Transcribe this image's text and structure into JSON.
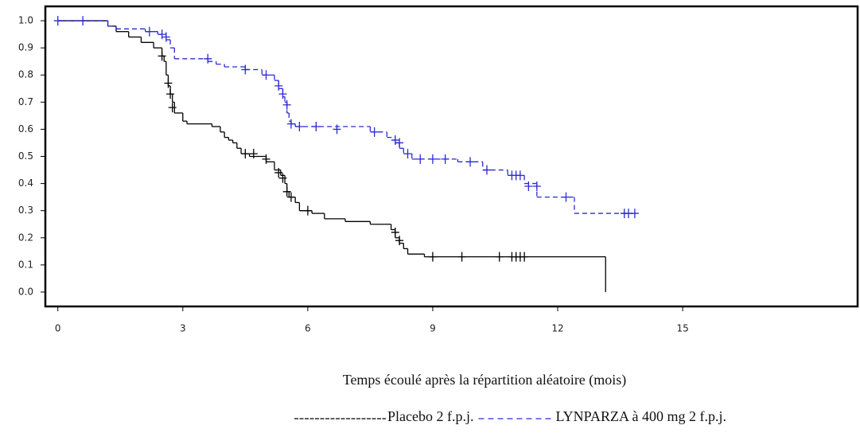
{
  "chart_data": {
    "type": "km",
    "x_label": "Temps écoulé après la répartition aléatoire (mois)",
    "xlim": [
      -0.3,
      19.2
    ],
    "ylim": [
      -0.053,
      1.053
    ],
    "xticks": [
      0,
      3,
      6,
      9,
      12,
      15
    ],
    "yticks": [
      {
        "value": 0,
        "label": "0.0"
      },
      0.1,
      0.2,
      0.3,
      0.4,
      0.5,
      0.6,
      0.7,
      0.8,
      0.9,
      {
        "value": 1,
        "label": "1.0"
      }
    ],
    "series": [
      {
        "name": "Placebo 2 f.p.j.",
        "color": "#000000",
        "dashed": false,
        "x": [
          0,
          1.2,
          1.4,
          1.7,
          2.0,
          2.3,
          2.5,
          2.55,
          2.6,
          2.65,
          2.7,
          2.75,
          2.8,
          3.0,
          3.1,
          3.7,
          3.9,
          4.0,
          4.1,
          4.2,
          4.3,
          4.4,
          4.6,
          5.0,
          5.2,
          5.35,
          5.45,
          5.5,
          5.55,
          5.7,
          5.8,
          6.1,
          6.4,
          6.9,
          7.5,
          8.0,
          8.1,
          8.2,
          8.3,
          8.4,
          8.8,
          13.15
        ],
        "values": [
          1.0,
          0.98,
          0.96,
          0.94,
          0.92,
          0.9,
          0.87,
          0.85,
          0.8,
          0.76,
          0.73,
          0.7,
          0.66,
          0.63,
          0.62,
          0.61,
          0.59,
          0.57,
          0.56,
          0.55,
          0.53,
          0.51,
          0.5,
          0.48,
          0.45,
          0.43,
          0.4,
          0.37,
          0.35,
          0.33,
          0.3,
          0.29,
          0.27,
          0.26,
          0.25,
          0.23,
          0.2,
          0.18,
          0.16,
          0.14,
          0.13,
          0
        ],
        "censor_x": [
          2.5,
          2.65,
          2.7,
          2.75,
          4.5,
          4.7,
          5.0,
          5.3,
          5.4,
          5.5,
          5.6,
          6.0,
          8.1,
          8.2,
          9.0,
          9.7,
          10.6,
          10.9,
          11.0,
          11.1,
          11.2
        ],
        "censor_values": [
          0.87,
          0.77,
          0.73,
          0.68,
          0.51,
          0.51,
          0.49,
          0.44,
          0.42,
          0.37,
          0.35,
          0.3,
          0.22,
          0.19,
          0.13,
          0.13,
          0.13,
          0.13,
          0.13,
          0.13,
          0.13
        ]
      },
      {
        "name": "LYNPARZA à 400 mg 2 f.p.j.",
        "color": "#2a2ad0",
        "dashed": true,
        "x": [
          0,
          1.2,
          1.4,
          2.1,
          2.4,
          2.6,
          2.7,
          2.8,
          3.6,
          3.8,
          4.0,
          4.5,
          4.9,
          5.2,
          5.3,
          5.4,
          5.45,
          5.5,
          5.55,
          5.6,
          5.7,
          7.5,
          7.9,
          8.1,
          8.2,
          8.3,
          8.5,
          9.6,
          10.2,
          10.8,
          11.2,
          11.5,
          12.4,
          13.8
        ],
        "values": [
          1.0,
          0.98,
          0.97,
          0.96,
          0.95,
          0.93,
          0.9,
          0.86,
          0.85,
          0.84,
          0.83,
          0.82,
          0.8,
          0.78,
          0.75,
          0.72,
          0.7,
          0.66,
          0.63,
          0.62,
          0.61,
          0.59,
          0.57,
          0.55,
          0.53,
          0.51,
          0.49,
          0.48,
          0.45,
          0.43,
          0.4,
          0.35,
          0.29,
          0.29
        ],
        "censor_x": [
          0,
          0.6,
          2.2,
          2.5,
          2.6,
          3.6,
          4.5,
          5.0,
          5.3,
          5.4,
          5.5,
          5.6,
          5.8,
          6.2,
          6.7,
          7.6,
          8.1,
          8.2,
          8.4,
          8.7,
          9.0,
          9.3,
          9.9,
          10.3,
          10.9,
          11.0,
          11.1,
          11.3,
          11.5,
          12.2,
          13.6,
          13.7,
          13.85
        ],
        "censor_values": [
          1.0,
          1.0,
          0.96,
          0.95,
          0.94,
          0.86,
          0.82,
          0.8,
          0.76,
          0.73,
          0.69,
          0.62,
          0.61,
          0.61,
          0.6,
          0.59,
          0.56,
          0.55,
          0.51,
          0.49,
          0.49,
          0.49,
          0.48,
          0.45,
          0.43,
          0.43,
          0.43,
          0.39,
          0.39,
          0.35,
          0.29,
          0.29,
          0.29
        ]
      }
    ]
  }
}
